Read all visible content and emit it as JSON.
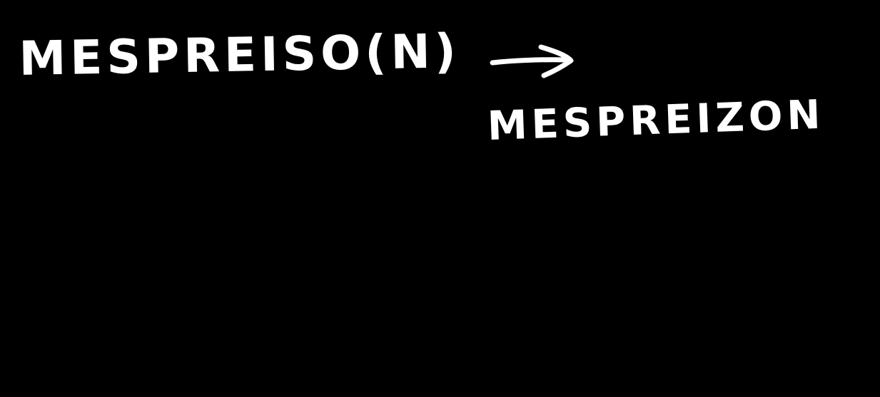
{
  "handwriting": {
    "line1": "MESPREISO(N)",
    "line2": "MESPREIZON"
  },
  "colors": {
    "background": "#000000",
    "ink": "#ffffff"
  },
  "icons": {
    "arrow": "right-arrow-icon"
  }
}
